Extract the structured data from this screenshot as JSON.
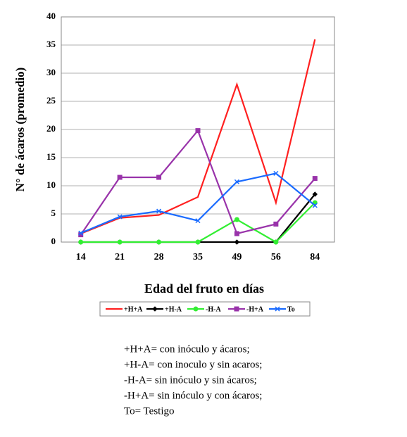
{
  "chart_data": {
    "type": "line",
    "ylabel": "N° de ácaros (promedio)",
    "xlabel": "Edad del fruto en días",
    "categories": [
      "14",
      "21",
      "28",
      "35",
      "49",
      "56",
      "84"
    ],
    "series": [
      {
        "name": "+H+A",
        "color": "#ff2020",
        "marker": "none",
        "values": [
          1.5,
          4.3,
          4.8,
          8,
          28,
          7,
          36
        ]
      },
      {
        "name": "+H-A",
        "color": "#000000",
        "marker": "diamond",
        "values": [
          0,
          0,
          0,
          0,
          0,
          0,
          8.5
        ]
      },
      {
        "name": "-H-A",
        "color": "#33ee33",
        "marker": "circle",
        "values": [
          0,
          0,
          0,
          0,
          4,
          0,
          7
        ]
      },
      {
        "name": "-H+A",
        "color": "#9933aa",
        "marker": "square",
        "values": [
          1.3,
          11.5,
          11.5,
          19.8,
          1.5,
          3.2,
          11.3
        ]
      },
      {
        "name": "To",
        "color": "#1a6bff",
        "marker": "cross",
        "values": [
          1.6,
          4.5,
          5.5,
          3.8,
          10.7,
          12.2,
          6.5
        ]
      }
    ],
    "ylim": [
      0,
      40
    ],
    "yticks": [
      0,
      5,
      10,
      15,
      20,
      25,
      30,
      35,
      40
    ],
    "grid": true,
    "legend": "bottom",
    "notes": [
      "+H+A= con inóculo y ácaros;",
      "+H-A= con inoculo y sin acaros;",
      "-H-A= sin inóculo y sin ácaros;",
      "-H+A= sin inóculo y con ácaros;",
      "To= Testigo"
    ]
  }
}
